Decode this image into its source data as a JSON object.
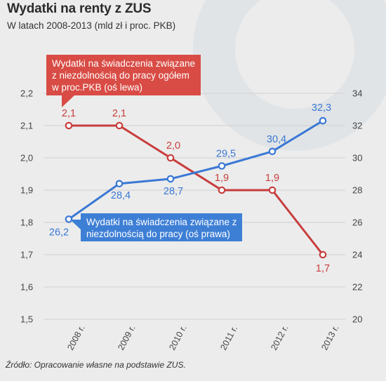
{
  "header": {
    "title": "Wydatki na renty z ZUS",
    "subtitle": "W latach 2008-2013 (mld zł i proc. PKB)"
  },
  "footer": {
    "source": "Źródło: Opracowanie własne na podstawie ZUS."
  },
  "callouts": {
    "red": "Wydatki na świadczenia związane z niezdolnością do pracy ogółem w proc.PKB (oś lewa)",
    "blue": "Wydatki na świadczenia związane z niezdolnością do pracy (oś prawa)"
  },
  "colors": {
    "red": "#c83d3d",
    "blue": "#3a78d4",
    "background": "#ececec",
    "grid": "#cfcfcf"
  },
  "chart_data": {
    "type": "line",
    "x": [
      "2008 r.",
      "2009 r.",
      "2010 r.",
      "2011 r.",
      "2012 r.",
      "2013 r."
    ],
    "y_left": {
      "min": 1.5,
      "max": 2.2,
      "ticks": [
        "1,5",
        "1,6",
        "1,7",
        "1,8",
        "1,9",
        "2,0",
        "2,1",
        "2,2"
      ]
    },
    "y_right": {
      "min": 20,
      "max": 34,
      "ticks": [
        "20",
        "22",
        "24",
        "26",
        "28",
        "30",
        "32",
        "34"
      ]
    },
    "grid": true,
    "series": [
      {
        "axis": "left",
        "color": "#c83d3d",
        "values": [
          2.1,
          2.1,
          2.0,
          1.9,
          1.9,
          1.7
        ],
        "labels": [
          "2,1",
          "2,1",
          "2,0",
          "1,9",
          "1,9",
          "1,7"
        ]
      },
      {
        "axis": "right",
        "color": "#3a78d4",
        "values": [
          26.2,
          28.4,
          28.7,
          29.5,
          30.4,
          32.3
        ],
        "labels": [
          "26,2",
          "28,4",
          "28,7",
          "29,5",
          "30,4",
          "32,3"
        ]
      }
    ]
  }
}
